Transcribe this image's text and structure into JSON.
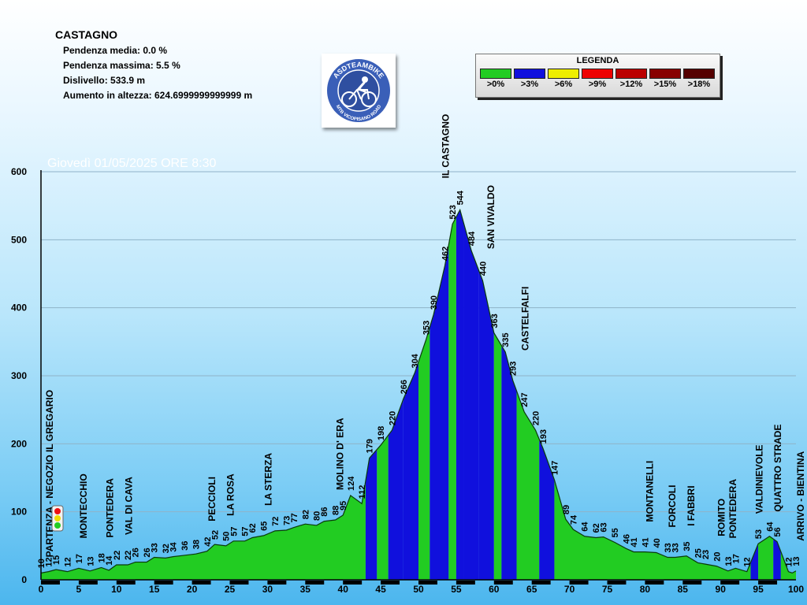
{
  "info": {
    "title": "CASTAGNO",
    "lines": [
      "Pendenza media: 0.0 %",
      "Pendenza massima: 5.5 %",
      "Dislivello: 533.9 m",
      "Aumento in altezza: 624.6999999999999 m"
    ]
  },
  "logo": {
    "text_top": "ASDTEAMBIKE",
    "text_bottom": "MTB VICOPISANO ROAD",
    "icon": "cyclist-icon"
  },
  "legend": {
    "title": "LEGENDA",
    "items": [
      {
        "label": ">0%",
        "color": "#22cc22"
      },
      {
        "label": ">3%",
        "color": "#1010dd"
      },
      {
        "label": ">6%",
        "color": "#eeee00"
      },
      {
        "label": ">9%",
        "color": "#ee0000"
      },
      {
        "label": ">12%",
        "color": "#bb0000"
      },
      {
        "label": ">15%",
        "color": "#880000"
      },
      {
        "label": ">18%",
        "color": "#550000"
      }
    ]
  },
  "chart_data": {
    "type": "area",
    "title": "Giovedì 01/05/2025 ORE 8:30",
    "xlim": [
      0,
      100
    ],
    "ylim": [
      0,
      600
    ],
    "x_ticks": [
      0,
      5,
      10,
      15,
      20,
      25,
      30,
      35,
      40,
      45,
      50,
      55,
      60,
      65,
      70,
      75,
      80,
      85,
      90,
      95,
      100
    ],
    "y_ticks": [
      0,
      100,
      200,
      300,
      400,
      500,
      600
    ],
    "grid": true,
    "profile": [
      {
        "x": 0,
        "y": 10
      },
      {
        "x": 1,
        "y": 12
      },
      {
        "x": 2,
        "y": 15
      },
      {
        "x": 3.5,
        "y": 12
      },
      {
        "x": 5,
        "y": 17
      },
      {
        "x": 6.5,
        "y": 13
      },
      {
        "x": 8,
        "y": 18
      },
      {
        "x": 9,
        "y": 14
      },
      {
        "x": 10,
        "y": 22
      },
      {
        "x": 11.5,
        "y": 22
      },
      {
        "x": 12.5,
        "y": 26
      },
      {
        "x": 14,
        "y": 26
      },
      {
        "x": 15,
        "y": 33
      },
      {
        "x": 16.5,
        "y": 32
      },
      {
        "x": 17.5,
        "y": 34
      },
      {
        "x": 19,
        "y": 36
      },
      {
        "x": 20.5,
        "y": 38
      },
      {
        "x": 22,
        "y": 42
      },
      {
        "x": 23,
        "y": 52
      },
      {
        "x": 24.5,
        "y": 50
      },
      {
        "x": 25.5,
        "y": 57
      },
      {
        "x": 27,
        "y": 57
      },
      {
        "x": 28,
        "y": 62
      },
      {
        "x": 29.5,
        "y": 65
      },
      {
        "x": 31,
        "y": 72
      },
      {
        "x": 32.5,
        "y": 73
      },
      {
        "x": 33.5,
        "y": 77
      },
      {
        "x": 35,
        "y": 82
      },
      {
        "x": 36.5,
        "y": 80
      },
      {
        "x": 37.5,
        "y": 86
      },
      {
        "x": 39,
        "y": 88
      },
      {
        "x": 40,
        "y": 95
      },
      {
        "x": 41,
        "y": 124
      },
      {
        "x": 42.5,
        "y": 112
      },
      {
        "x": 43.5,
        "y": 179
      },
      {
        "x": 45,
        "y": 198
      },
      {
        "x": 46.5,
        "y": 220
      },
      {
        "x": 48,
        "y": 266
      },
      {
        "x": 49.5,
        "y": 304
      },
      {
        "x": 51,
        "y": 353
      },
      {
        "x": 52,
        "y": 390
      },
      {
        "x": 53.5,
        "y": 462
      },
      {
        "x": 54.5,
        "y": 523
      },
      {
        "x": 55.5,
        "y": 544
      },
      {
        "x": 57,
        "y": 484
      },
      {
        "x": 58.5,
        "y": 440
      },
      {
        "x": 60,
        "y": 363
      },
      {
        "x": 61.5,
        "y": 335
      },
      {
        "x": 62.5,
        "y": 293
      },
      {
        "x": 64,
        "y": 247
      },
      {
        "x": 65.5,
        "y": 220
      },
      {
        "x": 66.5,
        "y": 193
      },
      {
        "x": 68,
        "y": 147
      },
      {
        "x": 69.5,
        "y": 89
      },
      {
        "x": 70.5,
        "y": 74
      },
      {
        "x": 72,
        "y": 64
      },
      {
        "x": 73.5,
        "y": 62
      },
      {
        "x": 74.5,
        "y": 63
      },
      {
        "x": 76,
        "y": 55
      },
      {
        "x": 77.5,
        "y": 46
      },
      {
        "x": 78.5,
        "y": 41
      },
      {
        "x": 80,
        "y": 41
      },
      {
        "x": 81.5,
        "y": 40
      },
      {
        "x": 83,
        "y": 33
      },
      {
        "x": 84,
        "y": 33
      },
      {
        "x": 85.5,
        "y": 35
      },
      {
        "x": 87,
        "y": 25
      },
      {
        "x": 88,
        "y": 23
      },
      {
        "x": 89.5,
        "y": 20
      },
      {
        "x": 91,
        "y": 13
      },
      {
        "x": 92,
        "y": 17
      },
      {
        "x": 93.5,
        "y": 12
      },
      {
        "x": 95,
        "y": 53
      },
      {
        "x": 96.5,
        "y": 64
      },
      {
        "x": 97.5,
        "y": 56
      },
      {
        "x": 99,
        "y": 12
      },
      {
        "x": 99.5,
        "y": 10
      },
      {
        "x": 100,
        "y": 13
      }
    ],
    "segments": [
      {
        "from": 0,
        "to": 43,
        "color": "#22cc22"
      },
      {
        "from": 43,
        "to": 44.5,
        "color": "#1010dd"
      },
      {
        "from": 44.5,
        "to": 46,
        "color": "#22cc22"
      },
      {
        "from": 46,
        "to": 48,
        "color": "#1010dd"
      },
      {
        "from": 48,
        "to": 50,
        "color": "#1010dd"
      },
      {
        "from": 50,
        "to": 51.5,
        "color": "#22cc22"
      },
      {
        "from": 51.5,
        "to": 54,
        "color": "#1010dd"
      },
      {
        "from": 54,
        "to": 55,
        "color": "#22cc22"
      },
      {
        "from": 55,
        "to": 56,
        "color": "#1010dd"
      },
      {
        "from": 56,
        "to": 58,
        "color": "#1010dd"
      },
      {
        "from": 58,
        "to": 60,
        "color": "#1010dd"
      },
      {
        "from": 60,
        "to": 61,
        "color": "#22cc22"
      },
      {
        "from": 61,
        "to": 63,
        "color": "#1010dd"
      },
      {
        "from": 63,
        "to": 66,
        "color": "#22cc22"
      },
      {
        "from": 66,
        "to": 68,
        "color": "#1010dd"
      },
      {
        "from": 68,
        "to": 94,
        "color": "#22cc22"
      },
      {
        "from": 94,
        "to": 95,
        "color": "#1010dd"
      },
      {
        "from": 95,
        "to": 97,
        "color": "#22cc22"
      },
      {
        "from": 97,
        "to": 98,
        "color": "#1010dd"
      },
      {
        "from": 98,
        "to": 100,
        "color": "#22cc22"
      }
    ],
    "places": [
      {
        "x": 0.5,
        "y": 10,
        "label": "PARTENZA - NEGOZIO IL GREGARIO"
      },
      {
        "x": 5,
        "y": 17,
        "label": "MONTECCHIO"
      },
      {
        "x": 8.5,
        "y": 18,
        "label": "PONTEDERA"
      },
      {
        "x": 11,
        "y": 22,
        "label": "VAL DI CAVA"
      },
      {
        "x": 22,
        "y": 42,
        "label": "PECCIOLI"
      },
      {
        "x": 24.5,
        "y": 50,
        "label": "LA ROSA"
      },
      {
        "x": 29.5,
        "y": 65,
        "label": "LA STERZA"
      },
      {
        "x": 39,
        "y": 88,
        "label": "MOLINO D' ERA"
      },
      {
        "x": 53,
        "y": 544,
        "label": "IL CASTAGNO"
      },
      {
        "x": 59,
        "y": 440,
        "label": "SAN VIVALDO"
      },
      {
        "x": 63.5,
        "y": 293,
        "label": "CASTELFALFI"
      },
      {
        "x": 80,
        "y": 41,
        "label": "MONTANELLI"
      },
      {
        "x": 83,
        "y": 33,
        "label": "FORCOLI"
      },
      {
        "x": 85.5,
        "y": 35,
        "label": "I FABBRI"
      },
      {
        "x": 89.5,
        "y": 20,
        "label": "ROMITO"
      },
      {
        "x": 91,
        "y": 17,
        "label": "PONTEDERA"
      },
      {
        "x": 94.5,
        "y": 53,
        "label": "VALDINIEVOLE"
      },
      {
        "x": 97,
        "y": 56,
        "label": "QUATTRO STRADE"
      },
      {
        "x": 100,
        "y": 13,
        "label": "ARRIVO - BIENTINA"
      }
    ]
  }
}
